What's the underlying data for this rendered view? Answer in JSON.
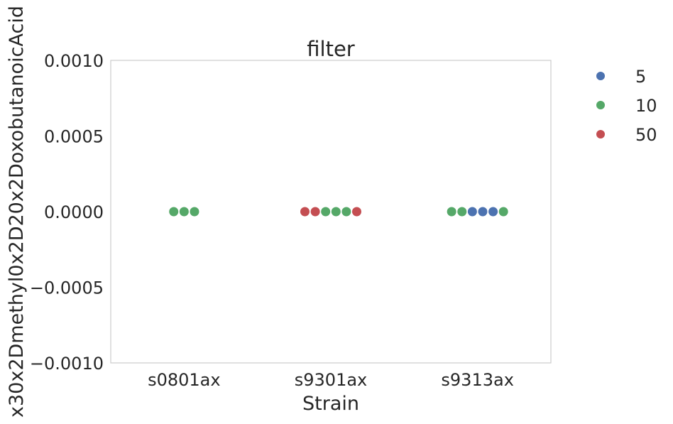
{
  "chart_data": {
    "type": "scatter",
    "subtype": "swarm",
    "title": "filter",
    "xlabel": "Strain",
    "ylabel": "x30x2Dmethyl0x2D20x2DoxobutanoicAcid",
    "categories": [
      "s0801ax",
      "s9301ax",
      "s9313ax"
    ],
    "ylim": [
      -0.001,
      0.001
    ],
    "yticks": [
      0.001,
      0.0005,
      0.0,
      -0.0005,
      -0.001
    ],
    "ytick_labels": [
      "0.0010",
      "0.0005",
      "0.0000",
      "−0.0005",
      "−0.0010"
    ],
    "grid": false,
    "legend_position": "outside-right",
    "series": [
      {
        "name": "5",
        "color": "#4c72b0",
        "points": [
          {
            "category": "s9313ax",
            "y": 0.0
          },
          {
            "category": "s9313ax",
            "y": 0.0
          },
          {
            "category": "s9313ax",
            "y": 0.0
          }
        ]
      },
      {
        "name": "10",
        "color": "#55a868",
        "points": [
          {
            "category": "s0801ax",
            "y": 0.0
          },
          {
            "category": "s0801ax",
            "y": 0.0
          },
          {
            "category": "s0801ax",
            "y": 0.0
          },
          {
            "category": "s9301ax",
            "y": 0.0
          },
          {
            "category": "s9301ax",
            "y": 0.0
          },
          {
            "category": "s9301ax",
            "y": 0.0
          },
          {
            "category": "s9313ax",
            "y": 0.0
          },
          {
            "category": "s9313ax",
            "y": 0.0
          },
          {
            "category": "s9313ax",
            "y": 0.0
          }
        ]
      },
      {
        "name": "50",
        "color": "#c44e52",
        "points": [
          {
            "category": "s9301ax",
            "y": 0.0
          },
          {
            "category": "s9301ax",
            "y": 0.0
          },
          {
            "category": "s9301ax",
            "y": 0.0
          }
        ]
      }
    ],
    "swarm_order": {
      "s0801ax": [
        "10",
        "10",
        "10"
      ],
      "s9301ax": [
        "50",
        "50",
        "10",
        "10",
        "10",
        "50"
      ],
      "s9313ax": [
        "10",
        "10",
        "5",
        "5",
        "5",
        "10"
      ]
    }
  }
}
